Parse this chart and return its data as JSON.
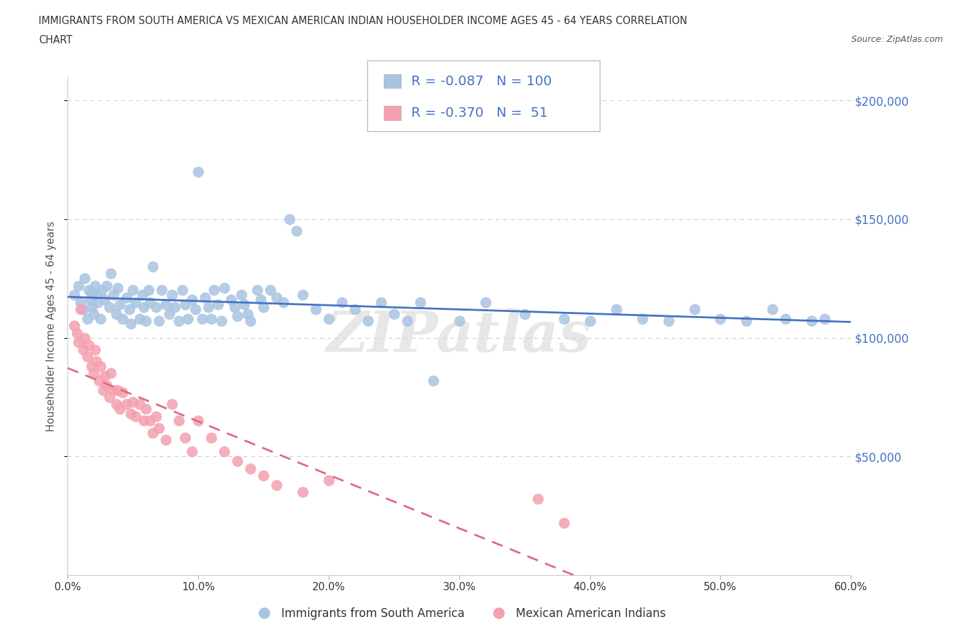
{
  "title_line1": "IMMIGRANTS FROM SOUTH AMERICA VS MEXICAN AMERICAN INDIAN HOUSEHOLDER INCOME AGES 45 - 64 YEARS CORRELATION",
  "title_line2": "CHART",
  "source": "Source: ZipAtlas.com",
  "series1_label": "Immigrants from South America",
  "series2_label": "Mexican American Indians",
  "series1_R": -0.087,
  "series1_N": 100,
  "series2_R": -0.37,
  "series2_N": 51,
  "series1_color": "#a8c4e0",
  "series2_color": "#f4a0b0",
  "series1_line_color": "#4472c4",
  "series2_line_color": "#e06880",
  "watermark": "ZIPatlas",
  "xlim": [
    0.0,
    0.6
  ],
  "ylim": [
    0,
    210000
  ],
  "xlabel_ticks": [
    0.0,
    0.1,
    0.2,
    0.3,
    0.4,
    0.5,
    0.6
  ],
  "xlabel_labels": [
    "0.0%",
    "10.0%",
    "20.0%",
    "30.0%",
    "40.0%",
    "50.0%",
    "60.0%"
  ],
  "ylabel_ticks": [
    50000,
    100000,
    150000,
    200000
  ],
  "ylabel_labels": [
    "$50,000",
    "$100,000",
    "$150,000",
    "$200,000"
  ],
  "ylabel_axis": "Householder Income Ages 45 - 64 years",
  "grid_color": "#cccccc",
  "background_color": "#ffffff",
  "legend_text_color": "#4472c4",
  "series1_x": [
    0.005,
    0.008,
    0.01,
    0.012,
    0.013,
    0.015,
    0.016,
    0.017,
    0.018,
    0.019,
    0.02,
    0.021,
    0.022,
    0.023,
    0.025,
    0.026,
    0.028,
    0.03,
    0.032,
    0.033,
    0.035,
    0.037,
    0.038,
    0.04,
    0.042,
    0.045,
    0.047,
    0.048,
    0.05,
    0.052,
    0.055,
    0.057,
    0.058,
    0.06,
    0.062,
    0.063,
    0.065,
    0.068,
    0.07,
    0.072,
    0.075,
    0.078,
    0.08,
    0.082,
    0.085,
    0.088,
    0.09,
    0.092,
    0.095,
    0.098,
    0.1,
    0.103,
    0.105,
    0.108,
    0.11,
    0.112,
    0.115,
    0.118,
    0.12,
    0.125,
    0.128,
    0.13,
    0.133,
    0.135,
    0.138,
    0.14,
    0.145,
    0.148,
    0.15,
    0.155,
    0.16,
    0.165,
    0.17,
    0.175,
    0.18,
    0.19,
    0.2,
    0.21,
    0.22,
    0.23,
    0.24,
    0.25,
    0.26,
    0.27,
    0.28,
    0.3,
    0.32,
    0.35,
    0.38,
    0.4,
    0.42,
    0.44,
    0.46,
    0.48,
    0.5,
    0.52,
    0.54,
    0.55,
    0.57,
    0.58
  ],
  "series1_y": [
    118000,
    122000,
    115000,
    112000,
    125000,
    108000,
    120000,
    116000,
    113000,
    119000,
    110000,
    122000,
    118000,
    115000,
    108000,
    120000,
    116000,
    122000,
    113000,
    127000,
    118000,
    110000,
    121000,
    114000,
    108000,
    117000,
    112000,
    106000,
    120000,
    115000,
    108000,
    118000,
    113000,
    107000,
    120000,
    115000,
    130000,
    113000,
    107000,
    120000,
    114000,
    110000,
    118000,
    113000,
    107000,
    120000,
    114000,
    108000,
    116000,
    112000,
    170000,
    108000,
    117000,
    113000,
    108000,
    120000,
    114000,
    107000,
    121000,
    116000,
    113000,
    109000,
    118000,
    114000,
    110000,
    107000,
    120000,
    116000,
    113000,
    120000,
    117000,
    115000,
    150000,
    145000,
    118000,
    112000,
    108000,
    115000,
    112000,
    107000,
    115000,
    110000,
    107000,
    115000,
    82000,
    107000,
    115000,
    110000,
    108000,
    107000,
    112000,
    108000,
    107000,
    112000,
    108000,
    107000,
    112000,
    108000,
    107000,
    108000
  ],
  "series2_x": [
    0.005,
    0.007,
    0.008,
    0.01,
    0.012,
    0.013,
    0.015,
    0.016,
    0.018,
    0.02,
    0.021,
    0.022,
    0.024,
    0.025,
    0.027,
    0.028,
    0.03,
    0.032,
    0.033,
    0.035,
    0.037,
    0.038,
    0.04,
    0.042,
    0.045,
    0.048,
    0.05,
    0.052,
    0.055,
    0.058,
    0.06,
    0.063,
    0.065,
    0.068,
    0.07,
    0.075,
    0.08,
    0.085,
    0.09,
    0.095,
    0.1,
    0.11,
    0.12,
    0.13,
    0.14,
    0.15,
    0.16,
    0.18,
    0.2,
    0.36,
    0.38
  ],
  "series2_y": [
    105000,
    102000,
    98000,
    112000,
    95000,
    100000,
    92000,
    97000,
    88000,
    85000,
    95000,
    90000,
    82000,
    88000,
    78000,
    84000,
    80000,
    75000,
    85000,
    78000,
    72000,
    78000,
    70000,
    77000,
    72000,
    68000,
    73000,
    67000,
    72000,
    65000,
    70000,
    65000,
    60000,
    67000,
    62000,
    57000,
    72000,
    65000,
    58000,
    52000,
    65000,
    58000,
    52000,
    48000,
    45000,
    42000,
    38000,
    35000,
    40000,
    32000,
    22000
  ]
}
